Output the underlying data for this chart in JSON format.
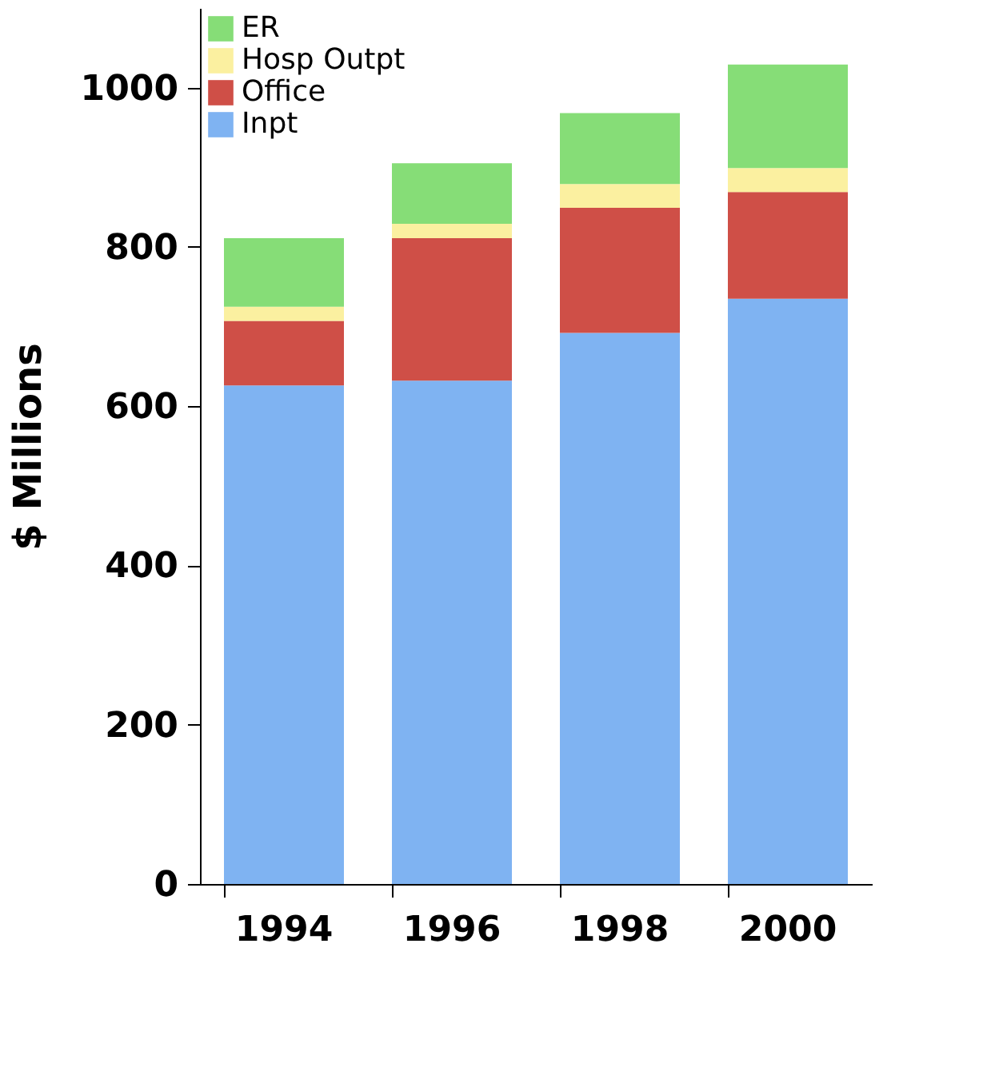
{
  "chart_data": {
    "type": "bar",
    "stacked": true,
    "ylabel": "$ Millions",
    "categories": [
      "1994",
      "1996",
      "1998",
      "2000"
    ],
    "series": [
      {
        "name": "Inpt",
        "color": "#7fb3f2",
        "values": [
          626,
          632,
          692,
          735
        ]
      },
      {
        "name": "Office",
        "color": "#cf4f47",
        "values": [
          81,
          179,
          157,
          134
        ]
      },
      {
        "name": "Hosp Outpt",
        "color": "#fbf0a0",
        "values": [
          18,
          18,
          30,
          30
        ]
      },
      {
        "name": "ER",
        "color": "#86dd77",
        "values": [
          86,
          76,
          89,
          130
        ]
      }
    ],
    "ylim": [
      0,
      1100
    ],
    "yticks": [
      0,
      200,
      400,
      600,
      800,
      1000
    ],
    "grid": false,
    "legend": "top left"
  }
}
